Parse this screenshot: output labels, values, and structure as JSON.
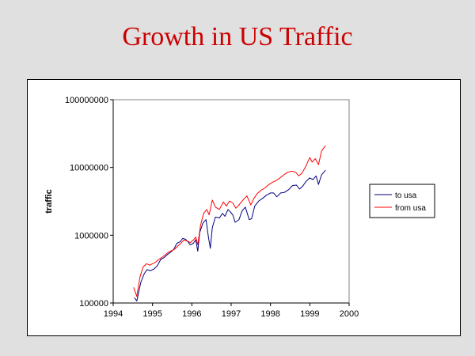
{
  "slide": {
    "title": "Growth in US Traffic"
  },
  "chart_data": {
    "type": "line",
    "title": "",
    "xlabel": "",
    "ylabel": "traffic",
    "xlim": [
      1994,
      2000
    ],
    "ylim": [
      100000,
      100000000
    ],
    "y_scale": "log",
    "x_ticks": [
      1994,
      1995,
      1996,
      1997,
      1998,
      1999,
      2000
    ],
    "y_ticks": [
      {
        "value": 100000,
        "label": "100000"
      },
      {
        "value": 1000000,
        "label": "1000000"
      },
      {
        "value": 10000000,
        "label": "10000000"
      },
      {
        "value": 100000000,
        "label": "100000000"
      }
    ],
    "grid": false,
    "legend_position": "right",
    "series": [
      {
        "name": "to usa",
        "color": "#000080",
        "points": [
          [
            1994.54,
            120000
          ],
          [
            1994.6,
            107000
          ],
          [
            1994.7,
            200000
          ],
          [
            1994.79,
            270000
          ],
          [
            1994.86,
            310000
          ],
          [
            1994.95,
            300000
          ],
          [
            1995.05,
            320000
          ],
          [
            1995.13,
            360000
          ],
          [
            1995.21,
            440000
          ],
          [
            1995.3,
            470000
          ],
          [
            1995.38,
            520000
          ],
          [
            1995.46,
            560000
          ],
          [
            1995.54,
            620000
          ],
          [
            1995.62,
            760000
          ],
          [
            1995.7,
            800000
          ],
          [
            1995.77,
            900000
          ],
          [
            1995.84,
            870000
          ],
          [
            1995.9,
            800000
          ],
          [
            1995.96,
            720000
          ],
          [
            1996.04,
            760000
          ],
          [
            1996.1,
            860000
          ],
          [
            1996.15,
            580000
          ],
          [
            1996.2,
            1100000
          ],
          [
            1996.28,
            1500000
          ],
          [
            1996.36,
            1700000
          ],
          [
            1996.42,
            950000
          ],
          [
            1996.47,
            640000
          ],
          [
            1996.52,
            1300000
          ],
          [
            1996.6,
            1850000
          ],
          [
            1996.7,
            1800000
          ],
          [
            1996.78,
            2100000
          ],
          [
            1996.84,
            1900000
          ],
          [
            1996.92,
            2400000
          ],
          [
            1996.98,
            2200000
          ],
          [
            1997.04,
            2000000
          ],
          [
            1997.1,
            1550000
          ],
          [
            1997.2,
            1700000
          ],
          [
            1997.28,
            2300000
          ],
          [
            1997.36,
            2600000
          ],
          [
            1997.46,
            1700000
          ],
          [
            1997.52,
            1750000
          ],
          [
            1997.6,
            2700000
          ],
          [
            1997.7,
            3200000
          ],
          [
            1997.8,
            3500000
          ],
          [
            1997.9,
            3900000
          ],
          [
            1998.0,
            4200000
          ],
          [
            1998.08,
            4200000
          ],
          [
            1998.16,
            3700000
          ],
          [
            1998.26,
            4200000
          ],
          [
            1998.36,
            4300000
          ],
          [
            1998.46,
            4700000
          ],
          [
            1998.56,
            5400000
          ],
          [
            1998.66,
            5500000
          ],
          [
            1998.74,
            4800000
          ],
          [
            1998.82,
            5300000
          ],
          [
            1998.9,
            6200000
          ],
          [
            1999.0,
            7000000
          ],
          [
            1999.08,
            6600000
          ],
          [
            1999.16,
            7500000
          ],
          [
            1999.22,
            5600000
          ],
          [
            1999.3,
            7800000
          ],
          [
            1999.4,
            9100000
          ]
        ]
      },
      {
        "name": "from usa",
        "color": "#ff0000",
        "points": [
          [
            1994.52,
            170000
          ],
          [
            1994.6,
            125000
          ],
          [
            1994.68,
            240000
          ],
          [
            1994.76,
            340000
          ],
          [
            1994.85,
            380000
          ],
          [
            1994.93,
            360000
          ],
          [
            1995.0,
            380000
          ],
          [
            1995.08,
            400000
          ],
          [
            1995.16,
            440000
          ],
          [
            1995.24,
            470000
          ],
          [
            1995.32,
            510000
          ],
          [
            1995.4,
            560000
          ],
          [
            1995.48,
            590000
          ],
          [
            1995.56,
            620000
          ],
          [
            1995.64,
            690000
          ],
          [
            1995.72,
            760000
          ],
          [
            1995.8,
            850000
          ],
          [
            1995.88,
            820000
          ],
          [
            1995.96,
            780000
          ],
          [
            1996.04,
            850000
          ],
          [
            1996.1,
            940000
          ],
          [
            1996.15,
            720000
          ],
          [
            1996.22,
            1400000
          ],
          [
            1996.3,
            2100000
          ],
          [
            1996.38,
            2400000
          ],
          [
            1996.44,
            2000000
          ],
          [
            1996.52,
            3300000
          ],
          [
            1996.6,
            2600000
          ],
          [
            1996.7,
            2400000
          ],
          [
            1996.8,
            3100000
          ],
          [
            1996.88,
            2700000
          ],
          [
            1996.96,
            3200000
          ],
          [
            1997.04,
            3000000
          ],
          [
            1997.12,
            2500000
          ],
          [
            1997.2,
            2800000
          ],
          [
            1997.3,
            3300000
          ],
          [
            1997.4,
            3800000
          ],
          [
            1997.5,
            2800000
          ],
          [
            1997.58,
            3500000
          ],
          [
            1997.66,
            4100000
          ],
          [
            1997.76,
            4600000
          ],
          [
            1997.86,
            5000000
          ],
          [
            1997.96,
            5600000
          ],
          [
            1998.04,
            6000000
          ],
          [
            1998.14,
            6400000
          ],
          [
            1998.24,
            7000000
          ],
          [
            1998.34,
            7800000
          ],
          [
            1998.44,
            8500000
          ],
          [
            1998.54,
            8800000
          ],
          [
            1998.64,
            8500000
          ],
          [
            1998.72,
            7500000
          ],
          [
            1998.8,
            8200000
          ],
          [
            1998.9,
            10500000
          ],
          [
            1999.0,
            14000000
          ],
          [
            1999.06,
            12000000
          ],
          [
            1999.14,
            13500000
          ],
          [
            1999.22,
            11000000
          ],
          [
            1999.3,
            17500000
          ],
          [
            1999.4,
            21000000
          ]
        ]
      }
    ]
  }
}
